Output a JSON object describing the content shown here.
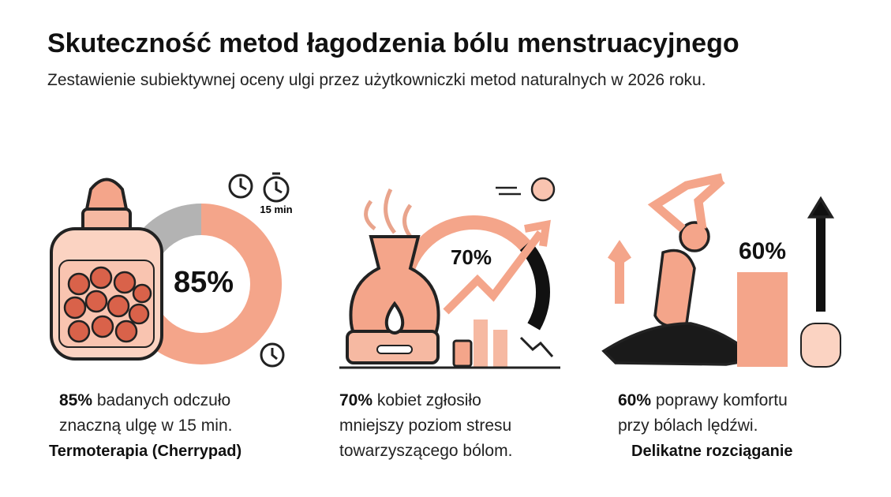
{
  "title": "Skuteczność metod łagodzenia bólu menstruacyjnego",
  "subtitle": "Zestawienie subiektywnej oceny ulgi przez użytkowniczki metod naturalnych w 2026 roku.",
  "timer_label": "15 min",
  "panels": [
    {
      "value": 85,
      "value_label": "85%",
      "caption_lines": [
        "badanych odczuło",
        "znaczną ulgę w 15 min."
      ],
      "method": "Termoterapia (Cherrypad)"
    },
    {
      "value": 70,
      "value_label": "70%",
      "caption_lines": [
        "kobiet zgłosiło",
        "mniejszy poziom stresu",
        "towarzyszącego bólom."
      ]
    },
    {
      "value": 60,
      "value_label": "60%",
      "caption_lines": [
        "poprawy komfortu",
        "przy bólach lędźwi."
      ],
      "method": "Delikatne rozciąganie"
    }
  ]
}
